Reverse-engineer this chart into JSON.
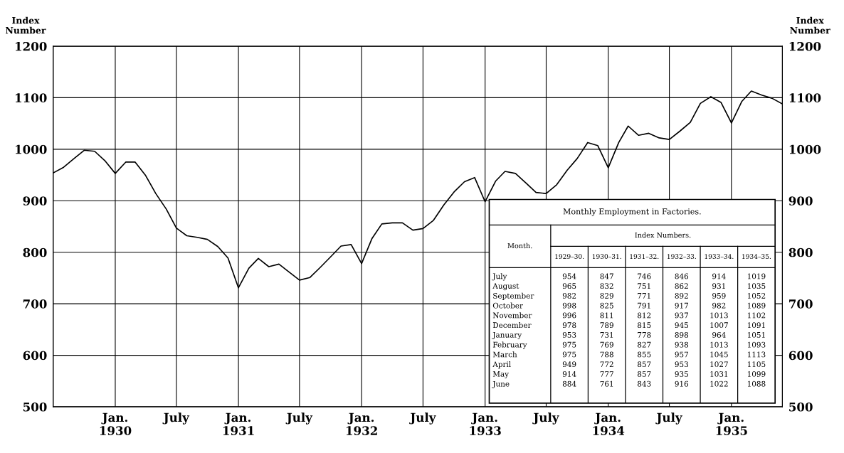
{
  "chart_data": [
    {
      "type": "line",
      "ylabel": "Index\nNumber",
      "y2label": "Index\nNumber",
      "x": [
        "1929-07",
        "1929-08",
        "1929-09",
        "1929-10",
        "1929-11",
        "1929-12",
        "1930-01",
        "1930-02",
        "1930-03",
        "1930-04",
        "1930-05",
        "1930-06",
        "1930-07",
        "1930-08",
        "1930-09",
        "1930-10",
        "1930-11",
        "1930-12",
        "1931-01",
        "1931-02",
        "1931-03",
        "1931-04",
        "1931-05",
        "1931-06",
        "1931-07",
        "1931-08",
        "1931-09",
        "1931-10",
        "1931-11",
        "1931-12",
        "1932-01",
        "1932-02",
        "1932-03",
        "1932-04",
        "1932-05",
        "1932-06",
        "1932-07",
        "1932-08",
        "1932-09",
        "1932-10",
        "1932-11",
        "1932-12",
        "1933-01",
        "1933-02",
        "1933-03",
        "1933-04",
        "1933-05",
        "1933-06",
        "1933-07",
        "1933-08",
        "1933-09",
        "1933-10",
        "1933-11",
        "1933-12",
        "1934-01",
        "1934-02",
        "1934-03",
        "1934-04",
        "1934-05",
        "1934-06",
        "1934-07",
        "1934-08",
        "1934-09",
        "1934-10",
        "1934-11",
        "1934-12",
        "1935-01",
        "1935-02",
        "1935-03",
        "1935-04",
        "1935-05",
        "1935-06"
      ],
      "series": [
        {
          "color": "#000000",
          "values": [
            954,
            965,
            982,
            998,
            996,
            978,
            953,
            975,
            975,
            949,
            914,
            884,
            847,
            832,
            829,
            825,
            811,
            789,
            731,
            769,
            788,
            772,
            777,
            761,
            746,
            751,
            771,
            791,
            812,
            815,
            778,
            827,
            855,
            857,
            857,
            843,
            846,
            862,
            892,
            917,
            937,
            945,
            898,
            938,
            957,
            953,
            935,
            916,
            914,
            931,
            959,
            982,
            1013,
            1007,
            964,
            1013,
            1045,
            1027,
            1031,
            1022,
            1019,
            1035,
            1052,
            1089,
            1102,
            1091,
            1051,
            1093,
            1113,
            1105,
            1099,
            1088
          ]
        }
      ],
      "xlim": [
        "1929-07",
        "1935-06"
      ],
      "xticks": [
        {
          "value": "1930-01",
          "label": "Jan.\n1930"
        },
        {
          "value": "1930-07",
          "label": "July"
        },
        {
          "value": "1931-01",
          "label": "Jan.\n1931"
        },
        {
          "value": "1931-07",
          "label": "July"
        },
        {
          "value": "1932-01",
          "label": "Jan.\n1932"
        },
        {
          "value": "1932-07",
          "label": "July"
        },
        {
          "value": "1933-01",
          "label": "Jan.\n1933"
        },
        {
          "value": "1933-07",
          "label": "July"
        },
        {
          "value": "1934-01",
          "label": "Jan.\n1934"
        },
        {
          "value": "1934-07",
          "label": "July"
        },
        {
          "value": "1935-01",
          "label": "Jan.\n1935"
        }
      ],
      "ylim": [
        500,
        1200
      ],
      "yticks": [
        500,
        600,
        700,
        800,
        900,
        1000,
        1100,
        1200
      ],
      "y2lim": [
        500,
        1200
      ],
      "y2ticks": [
        500,
        600,
        700,
        800,
        900,
        1000,
        1100,
        1200
      ],
      "grid": true,
      "marker": "none",
      "line_style": "solid",
      "legend": false
    },
    {
      "type": "other",
      "title": "Monthly Employment in Factories.",
      "annotations": [
        "Month.",
        "Index Numbers.",
        "1929–30.",
        "1930–31.",
        "1931–32.",
        "1932–33.",
        "1933–34.",
        "1934–35.",
        "July",
        "August",
        "September",
        "October",
        "November",
        "December",
        "January",
        "February",
        "March",
        "April",
        "May",
        "June",
        "954",
        "965",
        "982",
        "998",
        "996",
        "978",
        "953",
        "975",
        "975",
        "949",
        "914",
        "884",
        "847",
        "832",
        "829",
        "825",
        "811",
        "789",
        "731",
        "769",
        "788",
        "772",
        "777",
        "761",
        "746",
        "751",
        "771",
        "791",
        "812",
        "815",
        "778",
        "827",
        "855",
        "857",
        "857",
        "843",
        "846",
        "862",
        "892",
        "917",
        "937",
        "945",
        "898",
        "938",
        "957",
        "953",
        "935",
        "916",
        "914",
        "931",
        "959",
        "982",
        "1013",
        "1007",
        "964",
        "1013",
        "1045",
        "1027",
        "1031",
        "1022",
        "1019",
        "1035",
        "1052",
        "1089",
        "1102",
        "1091",
        "1051",
        "1093",
        "1113",
        "1105",
        "1099",
        "1088"
      ]
    }
  ]
}
